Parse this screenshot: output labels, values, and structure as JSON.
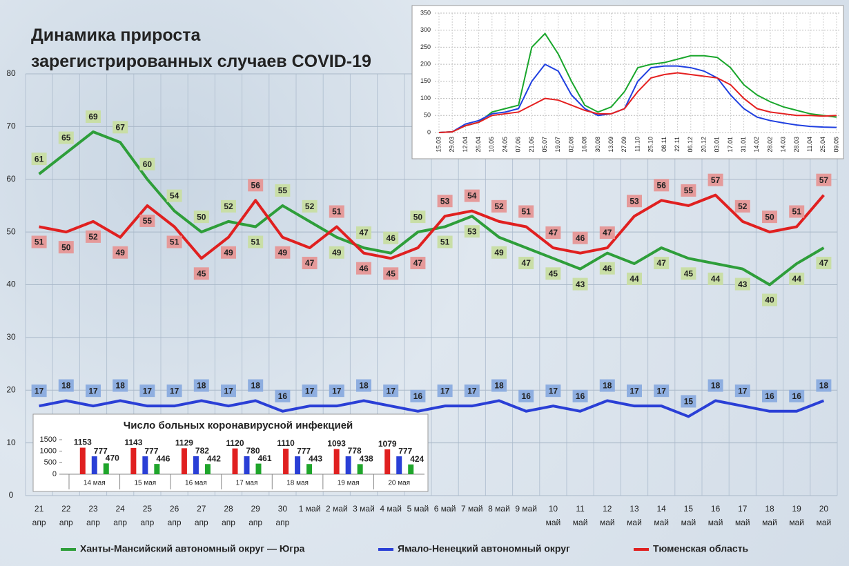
{
  "chart_data": [
    {
      "type": "line",
      "title": "Динамика прироста\nзарегистрированных случаев COVID-19",
      "categories": [
        "21\nапр",
        "22\nапр",
        "23\nапр",
        "24\nапр",
        "25\nапр",
        "26\nапр",
        "27\nапр",
        "28\nапр",
        "29\nапр",
        "30\nапр",
        "1 май",
        "2 май",
        "3 май",
        "4 май",
        "5 май",
        "6 май",
        "7 май",
        "8 май",
        "9 май",
        "10\nмай",
        "11\nмай",
        "12\nмай",
        "13\nмай",
        "14\nмай",
        "15\nмай",
        "16\nмай",
        "17\nмай",
        "18\nмай",
        "19\nмай",
        "20\nмай"
      ],
      "series": [
        {
          "name": "Ханты-Мансийский автономный округ — Югра",
          "color": "#2e9e3a",
          "label_color": "#c9dea6",
          "values": [
            61,
            65,
            69,
            67,
            60,
            54,
            50,
            52,
            51,
            55,
            52,
            49,
            47,
            46,
            50,
            51,
            53,
            49,
            47,
            45,
            43,
            46,
            44,
            47,
            45,
            44,
            43,
            40,
            44,
            47
          ]
        },
        {
          "name": "Ямало-Ненецкий автономный округ",
          "color": "#2a3fd6",
          "label_color": "#8eaee0",
          "values": [
            17,
            18,
            17,
            18,
            17,
            17,
            18,
            17,
            18,
            16,
            17,
            17,
            18,
            17,
            16,
            17,
            17,
            18,
            16,
            17,
            16,
            18,
            17,
            17,
            15,
            18,
            17,
            16,
            16,
            18
          ]
        },
        {
          "name": "Тюменская область",
          "color": "#e02020",
          "label_color": "#e59a9a",
          "values": [
            51,
            50,
            52,
            49,
            55,
            51,
            45,
            49,
            56,
            49,
            47,
            51,
            46,
            45,
            47,
            53,
            54,
            52,
            51,
            47,
            46,
            47,
            53,
            56,
            55,
            57,
            52,
            50,
            51,
            57
          ]
        }
      ],
      "ylim": [
        0,
        80
      ],
      "yticks": [
        0,
        10,
        20,
        30,
        40,
        50,
        60,
        70,
        80
      ],
      "grid": true,
      "legend": "bottom"
    },
    {
      "type": "line",
      "categories": [
        "15.03",
        "29.03",
        "12.04",
        "26.04",
        "10.05",
        "24.05",
        "07.06",
        "21.06",
        "05.07",
        "19.07",
        "02.08",
        "16.08",
        "30.08",
        "13.09",
        "27.09",
        "11.10",
        "25.10",
        "08.11",
        "22.11",
        "06.12",
        "20.12",
        "03.01",
        "17.01",
        "31.01",
        "14.02",
        "28.02",
        "14.03",
        "28.03",
        "11.04",
        "25.04",
        "09.05"
      ],
      "series": [
        {
          "color": "#19a62b",
          "values": [
            0,
            2,
            20,
            30,
            60,
            70,
            80,
            250,
            290,
            230,
            150,
            80,
            60,
            75,
            120,
            190,
            200,
            205,
            215,
            225,
            225,
            220,
            190,
            140,
            110,
            90,
            75,
            65,
            55,
            50,
            45
          ]
        },
        {
          "color": "#1f3fe0",
          "values": [
            0,
            2,
            25,
            35,
            55,
            60,
            70,
            150,
            200,
            180,
            110,
            70,
            50,
            55,
            70,
            150,
            190,
            195,
            195,
            190,
            180,
            160,
            110,
            70,
            45,
            35,
            28,
            22,
            18,
            16,
            15
          ]
        },
        {
          "color": "#e52020",
          "values": [
            0,
            2,
            20,
            30,
            50,
            55,
            60,
            80,
            100,
            95,
            80,
            65,
            55,
            55,
            70,
            120,
            160,
            170,
            175,
            170,
            165,
            160,
            140,
            100,
            70,
            60,
            55,
            50,
            50,
            48,
            50
          ]
        }
      ],
      "ylim": [
        0,
        350
      ],
      "yticks": [
        0,
        50,
        100,
        150,
        200,
        250,
        300,
        350
      ],
      "grid": true
    },
    {
      "type": "bar",
      "title": "Число больных коронавирусной  инфекцией",
      "categories": [
        "14 мая",
        "15 мая",
        "16 мая",
        "17 мая",
        "18 мая",
        "19 мая",
        "20 мая"
      ],
      "series": [
        {
          "color": "#e02020",
          "values": [
            1153,
            1143,
            1129,
            1120,
            1110,
            1093,
            1079
          ]
        },
        {
          "color": "#2a3fd6",
          "values": [
            777,
            777,
            782,
            780,
            777,
            778,
            777
          ]
        },
        {
          "color": "#1fa52b",
          "values": [
            470,
            446,
            442,
            461,
            443,
            438,
            424
          ]
        }
      ],
      "ylim": [
        0,
        1500
      ],
      "yticks": [
        0,
        500,
        1000,
        1500
      ]
    }
  ]
}
